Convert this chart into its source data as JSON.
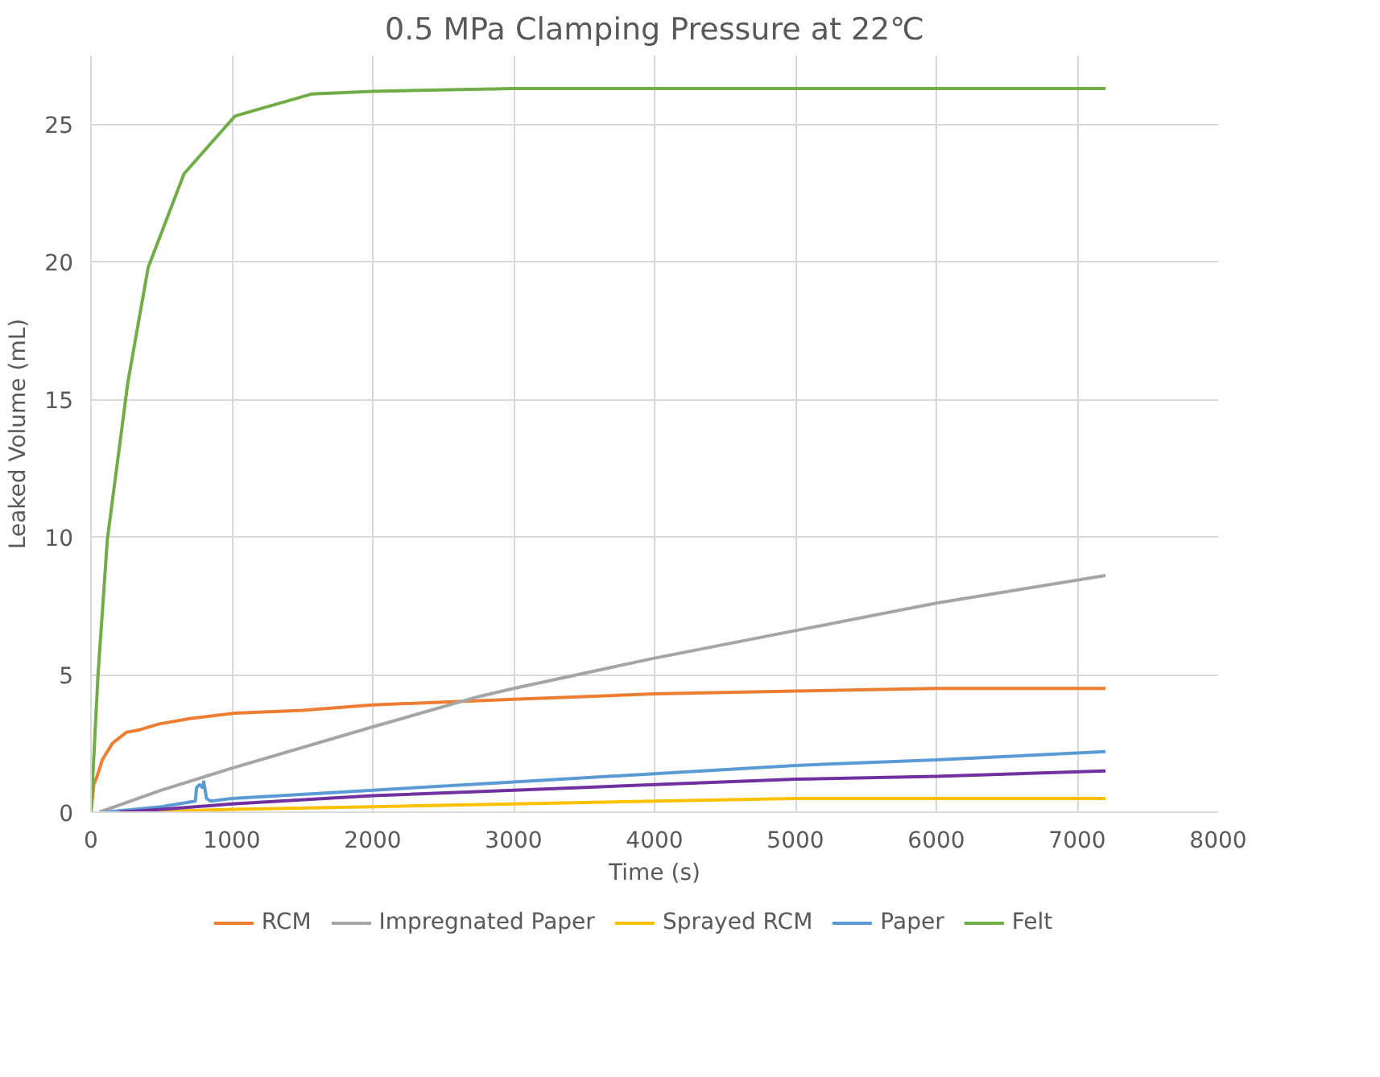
{
  "chart_data": {
    "type": "line",
    "title": "0.5 MPa Clamping Pressure at 22℃",
    "xlabel": "Time (s)",
    "ylabel": "Leaked Volume (mL)",
    "xlim": [
      0,
      8000
    ],
    "ylim": [
      0,
      27.5
    ],
    "xticks": [
      0,
      1000,
      2000,
      3000,
      4000,
      5000,
      6000,
      7000,
      8000
    ],
    "yticks": [
      0,
      5,
      10,
      15,
      20,
      25
    ],
    "grid": true,
    "legend": "bottom",
    "marker": "none",
    "line_style": "solid",
    "series": [
      {
        "name": "RCM",
        "color": "#ed7d31",
        "x": [
          0,
          20,
          43,
          80,
          152,
          250,
          350,
          478,
          700,
          1022,
          1500,
          2000,
          3000,
          4000,
          5000,
          6000,
          7200
        ],
        "values": [
          0,
          1.0,
          1.3,
          1.9,
          2.5,
          2.9,
          3.0,
          3.2,
          3.4,
          3.6,
          3.7,
          3.9,
          4.1,
          4.3,
          4.4,
          4.5,
          4.5
        ]
      },
      {
        "name": "Impregnated Paper",
        "color": "#a5a5a5",
        "x": [
          60,
          500,
          1000,
          2000,
          2750,
          3000,
          4000,
          5000,
          6000,
          7200
        ],
        "values": [
          0,
          0.8,
          1.6,
          3.1,
          4.2,
          4.5,
          5.6,
          6.6,
          7.6,
          8.6
        ]
      },
      {
        "name": "Sprayed RCM",
        "color": "#ffc000",
        "x": [
          300,
          1000,
          2000,
          3000,
          4000,
          5000,
          6000,
          7200
        ],
        "values": [
          0,
          0.1,
          0.2,
          0.3,
          0.4,
          0.5,
          0.5,
          0.5
        ]
      },
      {
        "name": "Paper",
        "color": "#5b9bd5",
        "x": [
          100,
          500,
          740,
          750,
          770,
          790,
          800,
          820,
          850,
          1000,
          2000,
          3000,
          4000,
          5000,
          6000,
          7200
        ],
        "values": [
          0,
          0.2,
          0.4,
          0.9,
          1.0,
          0.9,
          1.1,
          0.5,
          0.4,
          0.5,
          0.8,
          1.1,
          1.4,
          1.7,
          1.9,
          2.2
        ]
      },
      {
        "name": "Felt",
        "color": "#70ad47",
        "x": [
          0,
          50,
          116,
          261,
          406,
          660,
          1022,
          1565,
          2000,
          3000,
          4000,
          5000,
          6000,
          7200
        ],
        "values": [
          0,
          5.0,
          9.9,
          15.6,
          19.8,
          23.2,
          25.3,
          26.1,
          26.2,
          26.3,
          26.3,
          26.3,
          26.3,
          26.3
        ]
      },
      {
        "color": "#7030a0",
        "x": [
          200,
          500,
          1000,
          2000,
          3000,
          4000,
          5000,
          6000,
          7200
        ],
        "values": [
          0,
          0.1,
          0.3,
          0.6,
          0.8,
          1.0,
          1.2,
          1.3,
          1.5
        ]
      }
    ]
  }
}
